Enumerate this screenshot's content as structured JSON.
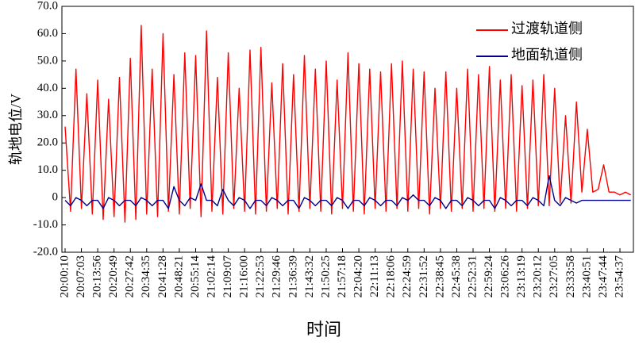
{
  "chart_data": {
    "type": "line",
    "ylabel": "轨地电位/V",
    "xlabel": "时间",
    "categories": [
      "20:00:10",
      null,
      null,
      "20:07:03",
      null,
      null,
      "20:13:56",
      null,
      null,
      "20:20:49",
      null,
      null,
      "20:27:42",
      null,
      null,
      "20:34:35",
      null,
      null,
      "20:41:28",
      null,
      null,
      "20:48:21",
      null,
      null,
      "20:55:14",
      null,
      null,
      "21:02:14",
      null,
      null,
      "21:09:07",
      null,
      null,
      "21:16:00",
      null,
      null,
      "21:22:53",
      null,
      null,
      "21:29:46",
      null,
      null,
      "21:36:39",
      null,
      null,
      "21:43:32",
      null,
      null,
      "21:50:25",
      null,
      null,
      "21:57:18",
      null,
      null,
      "22:04:20",
      null,
      null,
      "22:11:13",
      null,
      null,
      "22:18:06",
      null,
      null,
      "22:24:59",
      null,
      null,
      "22:31:52",
      null,
      null,
      "22:38:45",
      null,
      null,
      "22:45:38",
      null,
      null,
      "22:52:31",
      null,
      null,
      "22:59:24",
      null,
      null,
      "23:06:26",
      null,
      null,
      "23:13:19",
      null,
      null,
      "23:20:12",
      null,
      null,
      "23:27:05",
      null,
      null,
      "23:33:58",
      null,
      null,
      "23:40:51",
      null,
      null,
      "23:47:44",
      null,
      null,
      "23:54:37",
      null,
      null
    ],
    "series": [
      {
        "name": "过渡轨道侧",
        "color": "#ff0000",
        "values": [
          26,
          -5,
          47,
          -4,
          38,
          -6,
          43,
          -8,
          36,
          -7,
          44,
          -9,
          51,
          -8,
          63,
          -6,
          47,
          -7,
          60,
          -5,
          45,
          -6,
          53,
          -4,
          52,
          -7,
          61,
          -5,
          44,
          -6,
          53,
          -4,
          40,
          -5,
          54,
          -6,
          55,
          -5,
          42,
          -4,
          49,
          -6,
          45,
          -5,
          52,
          -4,
          47,
          -5,
          50,
          -6,
          43,
          -4,
          53,
          -5,
          49,
          -6,
          47,
          -4,
          46,
          -5,
          49,
          -4,
          50,
          -5,
          47,
          -4,
          46,
          -6,
          40,
          -4,
          46,
          -5,
          40,
          -4,
          47,
          -5,
          45,
          -4,
          48,
          -5,
          43,
          -4,
          45,
          -5,
          41,
          -4,
          43,
          -3,
          45,
          -3,
          40,
          -2,
          30,
          -2,
          35,
          2,
          25,
          2,
          3,
          12,
          2,
          2,
          1,
          2,
          1
        ]
      },
      {
        "name": "地面轨道侧",
        "color": "#00008b",
        "values": [
          -1,
          -3,
          0,
          -1,
          -3,
          -1,
          -1,
          -4,
          0,
          -1,
          -3,
          -1,
          -1,
          -3,
          0,
          -1,
          -3,
          -1,
          -1,
          -4,
          4,
          -1,
          -3,
          0,
          -1,
          5,
          -1,
          -1,
          -3,
          3,
          -1,
          -3,
          0,
          -1,
          -4,
          -1,
          -1,
          -3,
          0,
          -1,
          -3,
          -1,
          -1,
          -4,
          0,
          -1,
          -3,
          -1,
          -1,
          -3,
          0,
          -1,
          -4,
          -1,
          -1,
          -3,
          0,
          -1,
          -3,
          -1,
          -1,
          -3,
          0,
          -1,
          1,
          -1,
          -1,
          -3,
          0,
          -1,
          -4,
          -1,
          -1,
          -3,
          0,
          -1,
          -3,
          -1,
          -1,
          -4,
          0,
          -1,
          -3,
          -1,
          -1,
          -3,
          0,
          -1,
          -3,
          8,
          -1,
          -3,
          0,
          -1,
          -2,
          -1,
          -1,
          -1,
          -1,
          -1,
          -1,
          -1,
          -1,
          -1,
          -1
        ]
      }
    ],
    "ylim": [
      -20,
      70
    ],
    "yticks": [
      {
        "value": -20,
        "label": "-20.0"
      },
      {
        "value": -10,
        "label": "-10.0"
      },
      0,
      {
        "value": 10,
        "label": "10.0"
      },
      {
        "value": 20,
        "label": "20.0"
      },
      {
        "value": 30,
        "label": "30.0"
      },
      {
        "value": 40,
        "label": "40.0"
      },
      {
        "value": 50,
        "label": "50.0"
      },
      {
        "value": 60,
        "label": "60.0"
      },
      {
        "value": 70,
        "label": "70.0"
      }
    ],
    "legend": "upper right"
  }
}
